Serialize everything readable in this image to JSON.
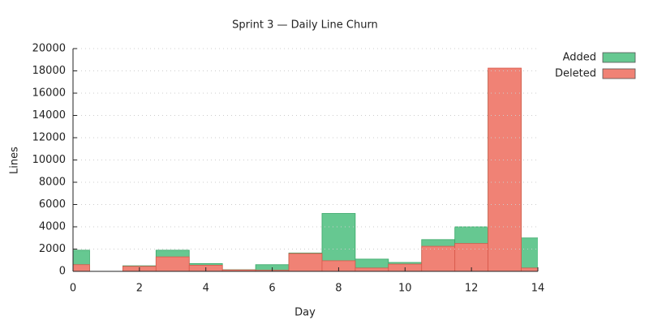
{
  "chart_data": {
    "type": "bar",
    "title": "Sprint 3 — Daily Line Churn",
    "x_label": "Day",
    "y_label": "Lines",
    "x": [
      0,
      1,
      2,
      3,
      4,
      5,
      6,
      7,
      8,
      9,
      10,
      11,
      12,
      13,
      14
    ],
    "series": [
      {
        "name": "Added",
        "color": "#66c891",
        "values": [
          1900,
          0,
          500,
          1900,
          700,
          150,
          600,
          1650,
          5200,
          1100,
          800,
          2850,
          4000,
          18000,
          3000
        ]
      },
      {
        "name": "Deleted",
        "color": "#f08275",
        "values": [
          600,
          0,
          450,
          1300,
          550,
          130,
          100,
          1600,
          950,
          300,
          650,
          2250,
          2500,
          18250,
          300
        ]
      }
    ],
    "xlim": [
      0,
      14
    ],
    "xticks": [
      0,
      2,
      4,
      6,
      8,
      10,
      12,
      14
    ],
    "ylim": [
      0,
      20000
    ],
    "yticks": [
      0,
      2000,
      4000,
      6000,
      8000,
      10000,
      12000,
      14000,
      16000,
      18000,
      20000
    ],
    "grid": true,
    "legend": "top-right"
  }
}
